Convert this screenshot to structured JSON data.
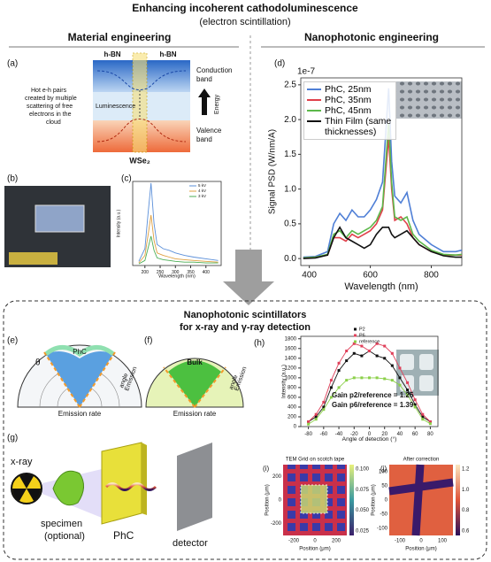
{
  "header": {
    "title": "Enhancing incoherent cathodoluminescence",
    "subtitle": "(electron scintillation)",
    "left": "Material engineering",
    "right": "Nanophotonic engineering"
  },
  "panel_labels": [
    "(a)",
    "(b)",
    "(c)",
    "(d)",
    "(e)",
    "(f)",
    "(g)",
    "(h)",
    "(i)",
    "(j)"
  ],
  "diagram_a": {
    "top_left": "h-BN",
    "top_right": "h-BN",
    "conduction": [
      "Conduction",
      "band"
    ],
    "valence": [
      "Valence",
      "band"
    ],
    "luminescence": "Luminescence",
    "energy": "Energy",
    "material": "WSe₂",
    "note": [
      "Hot e-h pairs",
      "created by multiple",
      "scattering of free",
      "electrons in the",
      "cloud"
    ]
  },
  "bottom": {
    "title": [
      "Nanophotonic scintillators",
      "for x-ray and γ-ray detection"
    ]
  },
  "diagram_e": {
    "label": "PhC",
    "rate": "Emission rate",
    "angle": [
      "Emission",
      "angle"
    ],
    "theta": "θ"
  },
  "diagram_f": {
    "label": "Bulk",
    "rate": "Emission rate",
    "angle": [
      "Emission",
      "angle"
    ]
  },
  "diagram_g": {
    "source": "x-ray",
    "specimen": [
      "specimen",
      "(optional)"
    ],
    "crystal": "PhC",
    "detector": "detector"
  },
  "map_i": {
    "title": "TEM Grid on scotch tape",
    "xticks": [
      -200,
      0,
      200
    ],
    "yticks": [
      200,
      0,
      -200
    ],
    "cbar": [
      "0.100",
      "0.075",
      "0.050",
      "0.025"
    ],
    "xlabel": "Position (μm)",
    "ylabel": "Position (μm)"
  },
  "map_j": {
    "title": "After correction",
    "xticks": [
      -100,
      0,
      100
    ],
    "yticks": [
      100,
      50,
      0,
      -50,
      -100
    ],
    "cbar": [
      "1.2",
      "1.0",
      "0.8",
      "0.6"
    ],
    "xlabel": "Position (μm)",
    "ylabel": "Position (μm)"
  },
  "chart_data": [
    {
      "type": "line",
      "offset_label": "1e-7",
      "y_label": "Signal PSD (W/nm/A)",
      "x_label": "Wavelength (nm)",
      "xlim": [
        372,
        900
      ],
      "ylim": [
        -0.1,
        2.6
      ],
      "xticks": [
        400,
        600,
        800
      ],
      "yticks": [
        {
          "value": 0,
          "label": "0.0"
        },
        {
          "value": 0.5,
          "label": "0.5"
        },
        {
          "value": 1,
          "label": "1.0"
        },
        {
          "value": 1.5,
          "label": "1.5"
        },
        {
          "value": 2,
          "label": "2.0"
        },
        {
          "value": 2.5,
          "label": "2.5"
        }
      ],
      "x": [
        380,
        420,
        460,
        480,
        500,
        520,
        540,
        560,
        580,
        600,
        620,
        640,
        660,
        670,
        680,
        700,
        720,
        740,
        760,
        800,
        840,
        880,
        900
      ],
      "series": [
        {
          "name": "PhC, 25nm",
          "color": "#4f7fd6",
          "values": [
            0.02,
            0.03,
            0.1,
            0.5,
            0.65,
            0.55,
            0.7,
            0.6,
            0.6,
            0.7,
            0.85,
            1.1,
            2.45,
            1.4,
            0.9,
            0.8,
            0.95,
            0.55,
            0.35,
            0.2,
            0.1,
            0.1,
            0.12
          ]
        },
        {
          "name": "PhC, 35nm",
          "color": "#e0404a",
          "values": [
            0.01,
            0.02,
            0.05,
            0.3,
            0.3,
            0.25,
            0.35,
            0.3,
            0.35,
            0.4,
            0.5,
            0.7,
            1.75,
            1.0,
            0.55,
            0.6,
            0.5,
            0.3,
            0.2,
            0.1,
            0.05,
            0.05,
            0.05
          ]
        },
        {
          "name": "PhC, 45nm",
          "color": "#5cb84a",
          "values": [
            0.01,
            0.02,
            0.06,
            0.35,
            0.4,
            0.3,
            0.4,
            0.35,
            0.4,
            0.45,
            0.55,
            0.75,
            1.95,
            1.1,
            0.6,
            0.55,
            0.6,
            0.35,
            0.25,
            0.12,
            0.06,
            0.05,
            0.06
          ]
        },
        {
          "name": "Thin Film (same thicknesses)",
          "color": "#111111",
          "values": [
            0,
            0.01,
            0.05,
            0.3,
            0.45,
            0.3,
            0.25,
            0.2,
            0.15,
            0.2,
            0.35,
            0.45,
            0.45,
            0.35,
            0.3,
            0.35,
            0.4,
            0.3,
            0.2,
            0.1,
            0.04,
            0.02,
            0.02
          ]
        }
      ]
    },
    {
      "type": "line",
      "markers": true,
      "y_label": "Intensity (a.u.)",
      "x_label": "Angle of detection (°)",
      "annotations": [
        "Gain p2/reference = 1.25",
        "Gain p6/reference = 1.39"
      ],
      "xlim": [
        -90,
        90
      ],
      "ylim": [
        0,
        1850
      ],
      "xticks": [
        -80,
        -60,
        -40,
        -20,
        0,
        20,
        40,
        60,
        80
      ],
      "yticks": [
        0,
        200,
        400,
        600,
        800,
        1000,
        1200,
        1400,
        1600,
        1800
      ],
      "x": [
        -80,
        -70,
        -60,
        -50,
        -40,
        -30,
        -20,
        -10,
        0,
        10,
        20,
        30,
        40,
        50,
        60,
        70,
        80
      ],
      "series": [
        {
          "name": "P2",
          "color": "#111111",
          "values": [
            100,
            200,
            400,
            800,
            1150,
            1350,
            1500,
            1450,
            1550,
            1450,
            1400,
            1250,
            1000,
            750,
            450,
            200,
            100
          ]
        },
        {
          "name": "P6",
          "color": "#e0405a",
          "values": [
            100,
            250,
            500,
            950,
            1300,
            1550,
            1700,
            1650,
            1550,
            1700,
            1650,
            1500,
            1200,
            900,
            550,
            250,
            100
          ]
        },
        {
          "name": "reference",
          "color": "#8bd04a",
          "values": [
            50,
            150,
            350,
            600,
            800,
            950,
            1000,
            1000,
            1000,
            1000,
            980,
            950,
            850,
            650,
            400,
            150,
            60
          ]
        }
      ]
    },
    {
      "type": "line",
      "y_label": "Intensity (a.u.)",
      "x_label": "Wavelength (nm)",
      "xlim": [
        160,
        450
      ],
      "ylim": [
        0,
        1
      ],
      "xticks": [
        200,
        250,
        300,
        350,
        400
      ],
      "x": [
        180,
        200,
        210,
        220,
        230,
        240,
        260,
        280,
        300,
        330,
        360,
        400,
        440
      ],
      "series": [
        {
          "name": "5 kV",
          "color": "#5b8fd9",
          "values": [
            0.05,
            0.2,
            0.6,
            0.98,
            0.5,
            0.25,
            0.2,
            0.18,
            0.15,
            0.12,
            0.1,
            0.08,
            0.06
          ]
        },
        {
          "name": "4 kV",
          "color": "#e0a040",
          "values": [
            0.03,
            0.12,
            0.35,
            0.6,
            0.3,
            0.15,
            0.12,
            0.1,
            0.08,
            0.07,
            0.06,
            0.05,
            0.04
          ]
        },
        {
          "name": "3 kV",
          "color": "#4cae55",
          "values": [
            0.02,
            0.06,
            0.2,
            0.35,
            0.18,
            0.09,
            0.07,
            0.06,
            0.05,
            0.04,
            0.04,
            0.03,
            0.03
          ]
        }
      ]
    }
  ]
}
